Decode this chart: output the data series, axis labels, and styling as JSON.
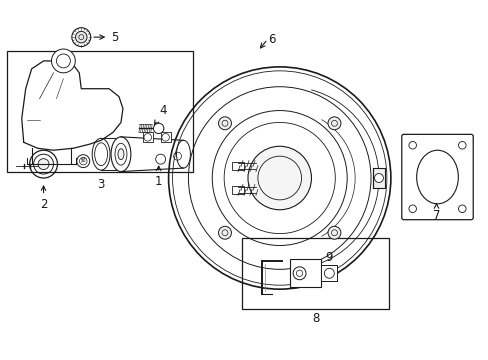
{
  "bg_color": "#ffffff",
  "line_color": "#1a1a1a",
  "fig_width": 4.89,
  "fig_height": 3.6,
  "dpi": 100,
  "labels": {
    "1": [
      1.58,
      1.98,
      1.58,
      2.12
    ],
    "2": [
      0.42,
      1.55,
      0.42,
      1.67
    ],
    "3": [
      1.1,
      1.82,
      1.1,
      1.9
    ],
    "4": [
      1.62,
      2.38,
      1.52,
      2.3
    ],
    "5": [
      1.12,
      3.2,
      0.95,
      3.2
    ],
    "6": [
      2.72,
      3.22,
      2.58,
      3.12
    ],
    "7": [
      4.25,
      1.62,
      4.25,
      1.72
    ],
    "8": [
      3.02,
      0.38,
      3.02,
      0.48
    ],
    "9": [
      3.3,
      1.02,
      3.18,
      0.92
    ]
  }
}
